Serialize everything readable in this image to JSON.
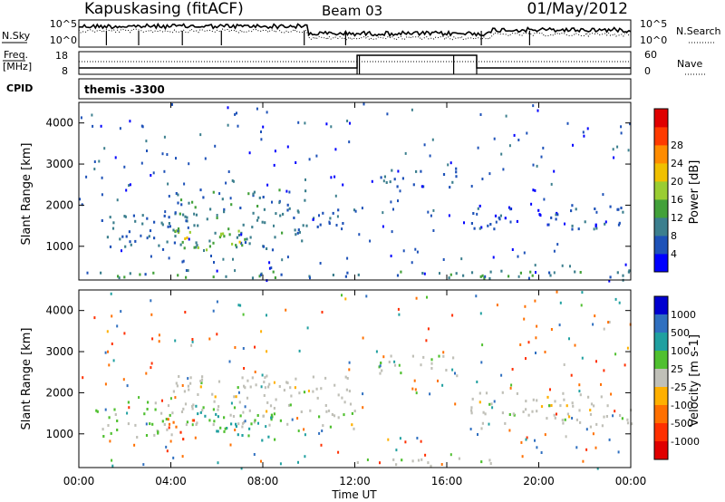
{
  "header": {
    "station": "Kapuskasing (fitACF)",
    "beam": "Beam 03",
    "date": "01/May/2012"
  },
  "top_panel": {
    "left_label": "N.Sky",
    "right_label": "N.Search",
    "left_ticks": [
      "10^5",
      "10^0"
    ],
    "right_ticks": [
      "10^5",
      "10^0"
    ]
  },
  "freq_panel": {
    "left_label_1": "Freq.",
    "left_label_2": "[MHz]",
    "right_label": "Nave",
    "left_ticks": [
      "18",
      "8"
    ],
    "right_ticks": [
      "60",
      "0"
    ]
  },
  "cpid": {
    "label": "CPID",
    "value": "themis -3300"
  },
  "chart_data": [
    {
      "type": "heatmap",
      "name": "power",
      "ylabel": "Slant Range [km]",
      "ylim": [
        180,
        4500
      ],
      "y_ticks": [
        "1000",
        "2000",
        "3000",
        "4000"
      ],
      "x_ticks": [
        "00:00",
        "04:00",
        "08:00",
        "12:00",
        "16:00",
        "20:00",
        "00:00"
      ],
      "colorbar_label": "Power [dB]",
      "colorbar_ticks": [
        "4",
        "8",
        "12",
        "16",
        "20",
        "24",
        "28"
      ],
      "colorbar_colors": [
        "#0000ff",
        "#1e52b8",
        "#3c7f8e",
        "#43a13a",
        "#9acd32",
        "#f0c000",
        "#ff8c00",
        "#ff3b00",
        "#e00000"
      ],
      "regions": [
        {
          "t": [
            0.5,
            4.0
          ],
          "r": [
            900,
            1800
          ],
          "level": 8
        },
        {
          "t": [
            4.0,
            10.0
          ],
          "r": [
            900,
            2400
          ],
          "level": 10
        },
        {
          "t": [
            4.2,
            7.5
          ],
          "r": [
            900,
            1400
          ],
          "level": 18
        },
        {
          "t": [
            10.0,
            12.0
          ],
          "r": [
            1400,
            1900
          ],
          "level": 6
        },
        {
          "t": [
            13.0,
            16.5
          ],
          "r": [
            2400,
            2900
          ],
          "level": 6
        },
        {
          "t": [
            17.0,
            24.0
          ],
          "r": [
            1400,
            2000
          ],
          "level": 6
        },
        {
          "t": [
            0.0,
            24.0
          ],
          "r": [
            200,
            400
          ],
          "level": 10
        }
      ]
    },
    {
      "type": "heatmap",
      "name": "velocity",
      "ylabel": "Slant Range [km]",
      "ylim": [
        180,
        4500
      ],
      "y_ticks": [
        "1000",
        "2000",
        "3000",
        "4000"
      ],
      "x_ticks": [
        "00:00",
        "04:00",
        "08:00",
        "12:00",
        "16:00",
        "20:00",
        "00:00"
      ],
      "xlabel": "Time UT",
      "colorbar_label": "Velocity [m s-1]",
      "colorbar_ticks": [
        "1000",
        "500",
        "100",
        "25",
        "-25",
        "-100",
        "-500",
        "-1000"
      ],
      "colorbar_colors": [
        "#0000d0",
        "#3070c0",
        "#20a0a0",
        "#50c030",
        "#c0c0b8",
        "#ffb000",
        "#ff7000",
        "#ff3000",
        "#e00000"
      ],
      "regions": [
        {
          "t": [
            0.5,
            4.0
          ],
          "r": [
            900,
            1800
          ],
          "level": 25
        },
        {
          "t": [
            4.0,
            12.0
          ],
          "r": [
            1100,
            2400
          ],
          "level": 0
        },
        {
          "t": [
            3.8,
            5.0
          ],
          "r": [
            800,
            1400
          ],
          "level": -500
        },
        {
          "t": [
            5.0,
            8.5
          ],
          "r": [
            800,
            1700
          ],
          "level": 100
        },
        {
          "t": [
            13.0,
            16.5
          ],
          "r": [
            2400,
            2900
          ],
          "level": 0
        },
        {
          "t": [
            17.0,
            24.0
          ],
          "r": [
            1100,
            2000
          ],
          "level": 0
        },
        {
          "t": [
            12.0,
            18.0
          ],
          "r": [
            200,
            400
          ],
          "level": 0
        }
      ]
    }
  ]
}
